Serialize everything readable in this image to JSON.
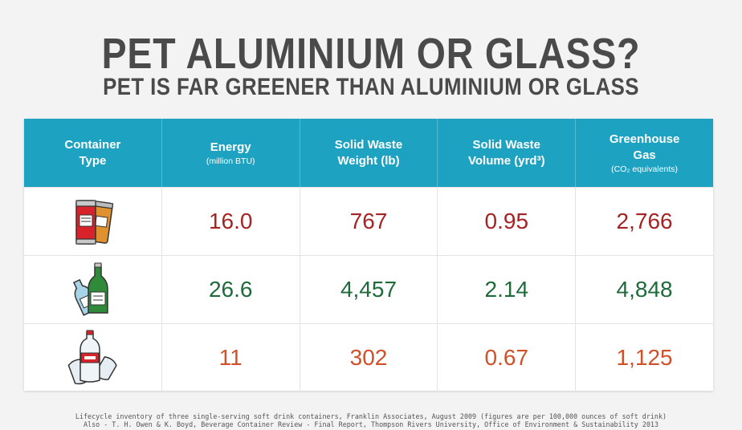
{
  "title": "PET ALUMINIUM OR GLASS?",
  "subtitle": "PET IS FAR GREENER THAN ALUMINIUM OR GLASS",
  "table": {
    "headers": [
      {
        "label_line1": "Container",
        "label_line2": "Type",
        "unit": ""
      },
      {
        "label_line1": "Energy",
        "label_line2": "",
        "unit": "(million BTU)"
      },
      {
        "label_line1": "Solid Waste",
        "label_line2": "Weight (lb)",
        "unit": ""
      },
      {
        "label_line1": "Solid Waste",
        "label_line2": "Volume (yrd³)",
        "unit": ""
      },
      {
        "label_line1": "Greenhouse",
        "label_line2": "Gas",
        "unit": "(CO₂ equivalents)"
      }
    ],
    "rows": [
      {
        "icon": "aluminium-cans-icon",
        "color": "#a62324",
        "values": [
          "16.0",
          "767",
          "0.95",
          "2,766"
        ]
      },
      {
        "icon": "glass-bottles-icon",
        "color": "#1f6a3a",
        "values": [
          "26.6",
          "4,457",
          "2.14",
          "4,848"
        ]
      },
      {
        "icon": "pet-bottles-icon",
        "color": "#d0502a",
        "values": [
          "11",
          "302",
          "0.67",
          "1,125"
        ]
      }
    ]
  },
  "footer": {
    "line1": "Lifecycle inventory of three single-serving soft drink containers, Franklin Associates, August 2009 (figures are per 100,000 ounces of soft drink)",
    "line2": "Also - T. H. Owen & K. Boyd, Beverage Container Review - Final Report, Thompson Rivers University, Office of Environment & Sustainability 2013"
  }
}
